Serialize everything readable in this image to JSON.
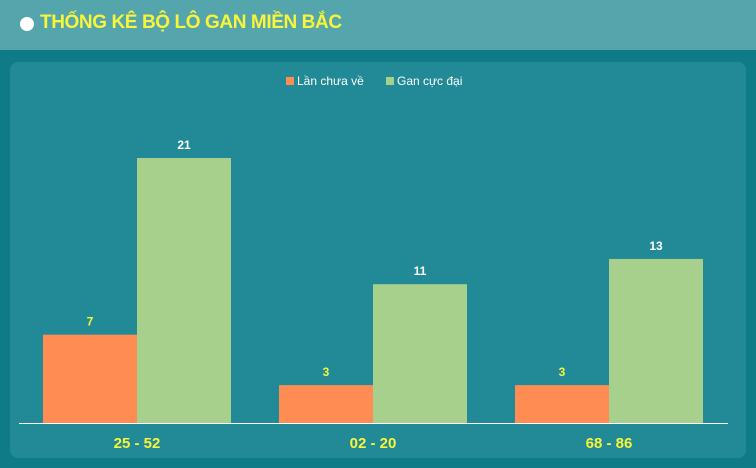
{
  "header": {
    "title": "THỐNG KÊ BỘ LÔ GAN MIỀN BẮC"
  },
  "colors": {
    "series_a": "#ff8c52",
    "series_b": "#a8d08d",
    "label_a": "#f8f53a",
    "label_b": "#ffffff",
    "category": "#f8f53a"
  },
  "chart_data": {
    "type": "bar",
    "categories": [
      "25 - 52",
      "02 - 20",
      "68 - 86"
    ],
    "series": [
      {
        "name": "Lần chưa về",
        "values": [
          7,
          3,
          3
        ]
      },
      {
        "name": "Gan cực đại",
        "values": [
          21,
          11,
          13
        ]
      }
    ],
    "ylim": [
      0,
      21
    ],
    "legend": "top-center",
    "grid": false,
    "data_labels": true
  }
}
